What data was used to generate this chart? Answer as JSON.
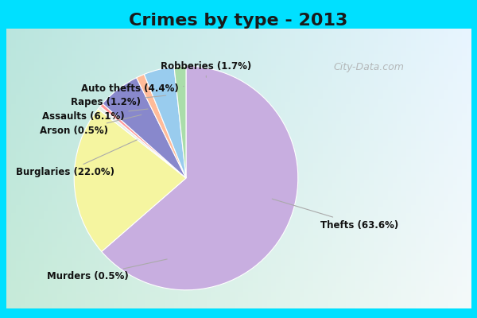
{
  "title": "Crimes by type - 2013",
  "labels": [
    "Thefts",
    "Burglaries",
    "Murders",
    "Arson",
    "Assaults",
    "Rapes",
    "Auto thefts",
    "Robberies"
  ],
  "percentages": [
    63.6,
    22.0,
    0.5,
    0.5,
    6.1,
    1.2,
    4.4,
    1.7
  ],
  "colors": [
    "#c8aee0",
    "#f5f5a0",
    "#e8f0e8",
    "#ff9999",
    "#8888cc",
    "#ffbb99",
    "#99ccee",
    "#aaddaa"
  ],
  "background_border": "#00e0ff",
  "background_main_tl": "#c8e8d8",
  "background_main_br": "#e8eef8",
  "title_fontsize": 16,
  "title_color": "#1a1a1a",
  "label_fontsize": 8.5,
  "label_color": "#111111",
  "watermark": "City-Data.com",
  "startangle": 90,
  "label_configs": [
    [
      "Thefts (63.6%)",
      [
        0.72,
        -0.38
      ],
      [
        0.5,
        -0.22
      ]
    ],
    [
      "Burglaries (22.0%)",
      [
        -0.5,
        0.42
      ],
      [
        -0.34,
        0.4
      ]
    ],
    [
      "Murders (0.5%)",
      [
        -0.32,
        -0.68
      ],
      [
        -0.1,
        -0.52
      ]
    ],
    [
      "Arson (0.5%)",
      [
        -0.52,
        0.52
      ],
      [
        -0.35,
        0.5
      ]
    ],
    [
      "Assaults (6.1%)",
      [
        -0.56,
        0.6
      ],
      [
        -0.36,
        0.57
      ]
    ],
    [
      "Rapes (1.2%)",
      [
        -0.52,
        0.66
      ],
      [
        -0.26,
        0.65
      ]
    ],
    [
      "Auto thefts (4.4%)",
      [
        -0.42,
        0.72
      ],
      [
        -0.2,
        0.7
      ]
    ],
    [
      "Robberies (1.7%)",
      [
        0.08,
        0.82
      ],
      [
        0.16,
        0.72
      ]
    ]
  ]
}
